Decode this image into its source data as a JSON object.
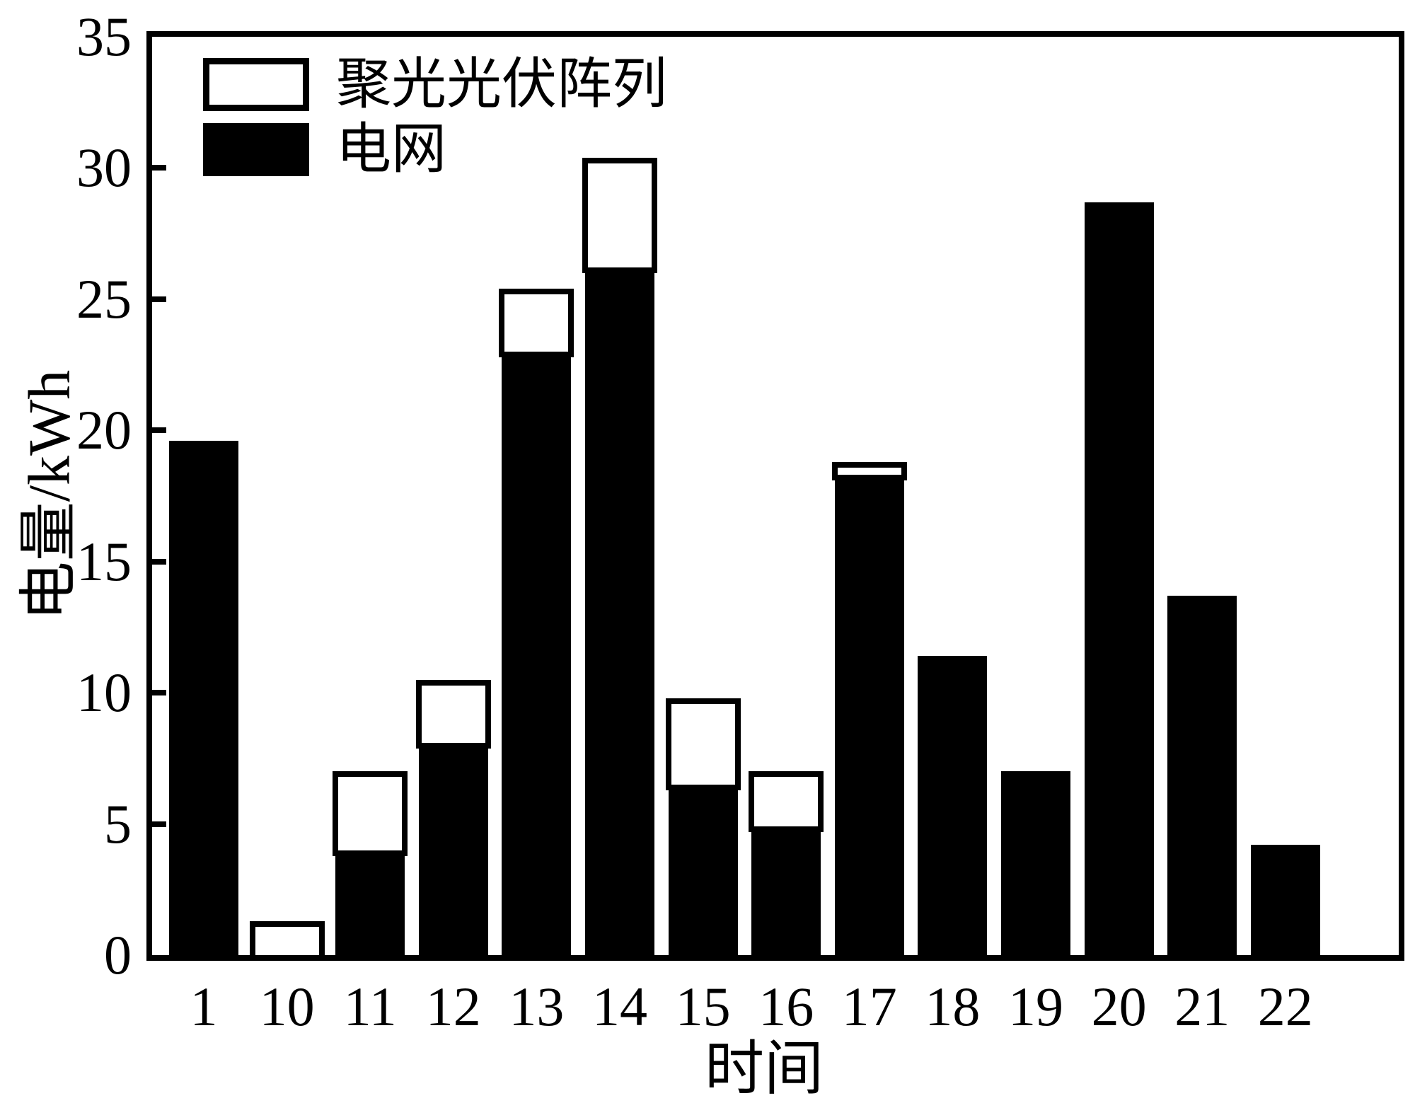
{
  "chart_data": {
    "type": "bar",
    "stacked": true,
    "title": "",
    "xlabel": "时间",
    "ylabel": "电量/kWh",
    "categories": [
      "1",
      "10",
      "11",
      "12",
      "13",
      "14",
      "15",
      "16",
      "17",
      "18",
      "19",
      "20",
      "21",
      "22"
    ],
    "series": [
      {
        "name": "电网",
        "color": "#000000",
        "values": [
          19.6,
          0,
          4.0,
          8.1,
          23.0,
          26.2,
          6.5,
          4.9,
          18.3,
          11.4,
          7.0,
          28.7,
          13.7,
          4.2
        ]
      },
      {
        "name": "聚光光伏阵列",
        "color": "#ffffff",
        "values": [
          0,
          1.3,
          3.0,
          2.4,
          2.4,
          4.2,
          3.3,
          2.1,
          0.5,
          0,
          0,
          0,
          0,
          0
        ]
      }
    ],
    "totals": [
      19.6,
      1.3,
      7.0,
      10.5,
      25.4,
      30.4,
      9.8,
      7.0,
      18.8,
      11.4,
      7.0,
      28.7,
      13.7,
      4.2
    ],
    "ylim": [
      0,
      35
    ],
    "yticks": [
      0,
      5,
      10,
      15,
      20,
      25,
      30,
      35
    ],
    "grid": false,
    "legend_position": "top-left",
    "legend": [
      {
        "label": "聚光光伏阵列",
        "swatch": "white"
      },
      {
        "label": "电网",
        "swatch": "black"
      }
    ]
  }
}
